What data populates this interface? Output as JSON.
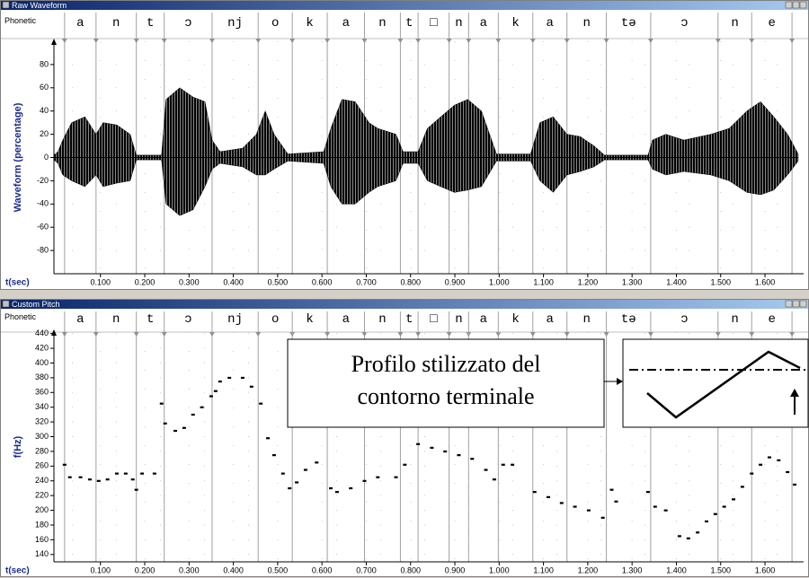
{
  "windows": [
    {
      "title": "Raw Waveform",
      "phonetic_label": "Phonetic",
      "phonemes": [
        "a",
        "n",
        "t",
        "ɔ",
        "nj",
        "o",
        "k",
        "a",
        "n",
        "t",
        "□",
        "n",
        "a",
        "k",
        "a",
        "n",
        "tə",
        "ɔ",
        "n",
        "e"
      ],
      "boundaries": [
        0.019,
        0.09,
        0.181,
        0.244,
        0.352,
        0.456,
        0.533,
        0.612,
        0.696,
        0.777,
        0.817,
        0.887,
        0.931,
        0.998,
        1.076,
        1.153,
        1.242,
        1.342,
        1.494,
        1.57,
        1.661
      ],
      "y_label": "Waveform (percentage)",
      "x_label": "t(sec)",
      "xlim": [
        -0.005,
        1.675
      ],
      "xticks": [
        {
          "value": 0.1,
          "label": "0.100"
        },
        {
          "value": 0.2,
          "label": "0.200"
        },
        {
          "value": 0.3,
          "label": "0.300"
        },
        {
          "value": 0.4,
          "label": "0.400"
        },
        {
          "value": 0.5,
          "label": "0.500"
        },
        {
          "value": 0.6,
          "label": "0.600"
        },
        {
          "value": 0.7,
          "label": "0.700"
        },
        {
          "value": 0.8,
          "label": "0.800"
        },
        {
          "value": 0.9,
          "label": "0.900"
        },
        {
          "value": 1.0,
          "label": "1.000"
        },
        {
          "value": 1.1,
          "label": "1.100"
        },
        {
          "value": 1.2,
          "label": "1.200"
        },
        {
          "value": 1.3,
          "label": "1.300"
        },
        {
          "value": 1.4,
          "label": "1.400"
        },
        {
          "value": 1.5,
          "label": "1.500"
        },
        {
          "value": 1.6,
          "label": "1.600"
        }
      ],
      "ylim": [
        -100,
        100
      ],
      "yticks": [
        -80,
        -60,
        -40,
        -20,
        0,
        20,
        40,
        60,
        80
      ],
      "waveform": {
        "x": [
          -0.005,
          0.004,
          0.015,
          0.035,
          0.065,
          0.09,
          0.106,
          0.137,
          0.167,
          0.181,
          0.238,
          0.248,
          0.279,
          0.309,
          0.336,
          0.352,
          0.37,
          0.421,
          0.452,
          0.472,
          0.492,
          0.523,
          0.604,
          0.62,
          0.645,
          0.675,
          0.706,
          0.726,
          0.767,
          0.783,
          0.817,
          0.838,
          0.868,
          0.899,
          0.929,
          0.96,
          0.994,
          1.071,
          1.092,
          1.122,
          1.153,
          1.183,
          1.214,
          1.238,
          1.336,
          1.346,
          1.376,
          1.417,
          1.478,
          1.519,
          1.559,
          1.59,
          1.62,
          1.651,
          1.675
        ],
        "upper": [
          2,
          5,
          15,
          30,
          35,
          20,
          30,
          28,
          20,
          2,
          2,
          50,
          60,
          52,
          48,
          15,
          5,
          8,
          20,
          40,
          20,
          3,
          5,
          25,
          50,
          48,
          30,
          25,
          20,
          5,
          5,
          25,
          35,
          45,
          50,
          40,
          3,
          3,
          30,
          35,
          20,
          18,
          10,
          2,
          2,
          15,
          20,
          15,
          20,
          25,
          40,
          48,
          35,
          20,
          3
        ],
        "lower": [
          -2,
          -5,
          -15,
          -20,
          -25,
          -15,
          -25,
          -22,
          -20,
          -2,
          -2,
          -40,
          -50,
          -45,
          -25,
          -10,
          -5,
          -8,
          -15,
          -15,
          -10,
          -3,
          -5,
          -25,
          -40,
          -40,
          -30,
          -25,
          -20,
          -5,
          -5,
          -20,
          -25,
          -30,
          -28,
          -25,
          -3,
          -3,
          -20,
          -30,
          -15,
          -12,
          -8,
          -2,
          -2,
          -10,
          -15,
          -12,
          -15,
          -20,
          -30,
          -32,
          -28,
          -15,
          -3
        ],
        "color": "#000000"
      }
    },
    {
      "title": "Custom Pitch",
      "phonetic_label": "Phonetic",
      "phonemes": [
        "a",
        "n",
        "t",
        "ɔ",
        "nj",
        "o",
        "k",
        "a",
        "n",
        "t",
        "□",
        "n",
        "a",
        "k",
        "a",
        "n",
        "tə",
        "ɔ",
        "n",
        "e"
      ],
      "boundaries": [
        0.019,
        0.09,
        0.181,
        0.244,
        0.352,
        0.456,
        0.533,
        0.612,
        0.696,
        0.777,
        0.817,
        0.887,
        0.931,
        0.998,
        1.076,
        1.153,
        1.242,
        1.342,
        1.494,
        1.57,
        1.661
      ],
      "y_label": "f(Hz)",
      "x_label": "t(sec)",
      "xlim": [
        -0.005,
        1.675
      ],
      "xticks": [
        {
          "value": 0.1,
          "label": "0.100"
        },
        {
          "value": 0.2,
          "label": "0.200"
        },
        {
          "value": 0.3,
          "label": "0.300"
        },
        {
          "value": 0.4,
          "label": "0.400"
        },
        {
          "value": 0.5,
          "label": "0.500"
        },
        {
          "value": 0.6,
          "label": "0.600"
        },
        {
          "value": 0.7,
          "label": "0.700"
        },
        {
          "value": 0.8,
          "label": "0.800"
        },
        {
          "value": 0.9,
          "label": "0.900"
        },
        {
          "value": 1.0,
          "label": "1.000"
        },
        {
          "value": 1.1,
          "label": "1.100"
        },
        {
          "value": 1.2,
          "label": "1.200"
        },
        {
          "value": 1.3,
          "label": "1.300"
        },
        {
          "value": 1.4,
          "label": "1.400"
        },
        {
          "value": 1.5,
          "label": "1.500"
        },
        {
          "value": 1.6,
          "label": "1.600"
        }
      ],
      "ylim": [
        130,
        442
      ],
      "yticks": [
        140,
        160,
        180,
        200,
        220,
        240,
        260,
        280,
        300,
        320,
        340,
        360,
        380,
        400,
        420,
        440
      ],
      "pitch": {
        "x": [
          0.019,
          0.031,
          0.055,
          0.076,
          0.096,
          0.116,
          0.137,
          0.157,
          0.173,
          0.181,
          0.194,
          0.222,
          0.238,
          0.246,
          0.269,
          0.289,
          0.309,
          0.329,
          0.35,
          0.36,
          0.37,
          0.391,
          0.421,
          0.441,
          0.462,
          0.478,
          0.492,
          0.512,
          0.527,
          0.543,
          0.563,
          0.588,
          0.62,
          0.634,
          0.665,
          0.696,
          0.726,
          0.767,
          0.787,
          0.817,
          0.848,
          0.878,
          0.909,
          0.939,
          0.97,
          0.989,
          1.009,
          1.03,
          1.08,
          1.111,
          1.141,
          1.171,
          1.202,
          1.234,
          1.254,
          1.264,
          1.336,
          1.352,
          1.376,
          1.407,
          1.427,
          1.448,
          1.468,
          1.488,
          1.508,
          1.529,
          1.549,
          1.57,
          1.59,
          1.61,
          1.631,
          1.651,
          1.667
        ],
        "values": [
          262,
          245,
          245,
          242,
          240,
          242,
          250,
          250,
          242,
          228,
          250,
          250,
          345,
          318,
          308,
          312,
          330,
          340,
          355,
          362,
          375,
          380,
          380,
          368,
          345,
          298,
          275,
          250,
          230,
          238,
          255,
          265,
          230,
          225,
          230,
          240,
          245,
          245,
          262,
          290,
          285,
          280,
          275,
          270,
          255,
          242,
          262,
          262,
          225,
          218,
          210,
          205,
          200,
          190,
          228,
          212,
          225,
          205,
          200,
          165,
          162,
          170,
          185,
          195,
          205,
          215,
          232,
          250,
          262,
          272,
          268,
          252,
          235
        ],
        "color": "#000000"
      },
      "annotation": [
        "Profilo stilizzato del",
        "contorno terminale"
      ]
    }
  ]
}
